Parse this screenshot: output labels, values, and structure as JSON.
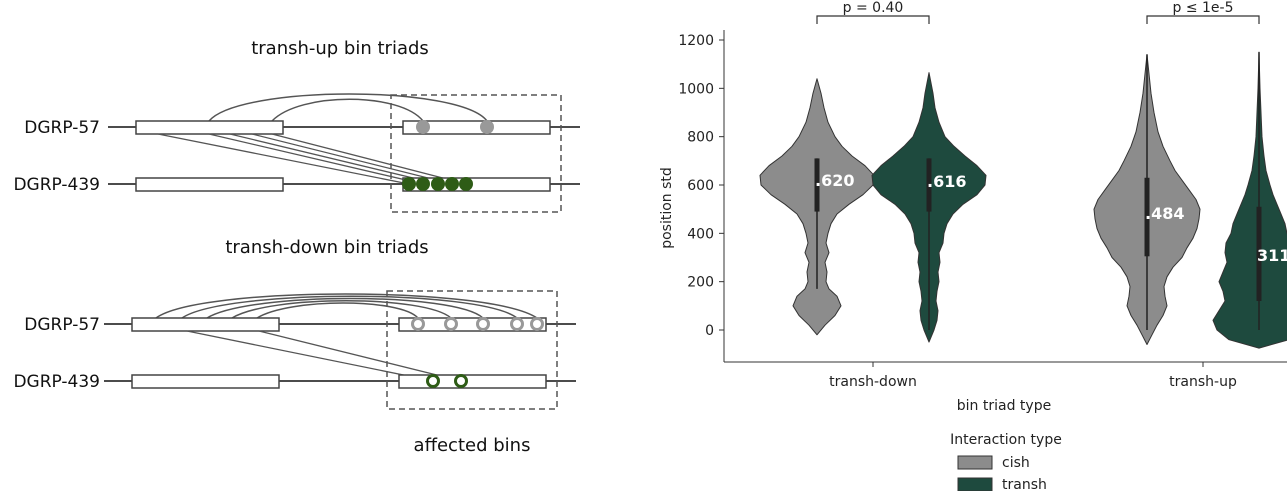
{
  "diagram": {
    "top_title": "transh-up bin triads",
    "mid_title": "transh-down bin triads",
    "bottom_label": "affected bins",
    "genome_a": "DGRP-57",
    "genome_b": "DGRP-439",
    "colors": {
      "cish": "#8c8c8c",
      "transh": "#2e5c16",
      "line": "#555555"
    }
  },
  "chart_data": {
    "type": "violin",
    "xlabel": "bin triad type",
    "ylabel": "position std",
    "ylim": [
      -140,
      1270
    ],
    "yticks": [
      0,
      200,
      400,
      600,
      800,
      1000,
      1200
    ],
    "categories": [
      "transh-down",
      "transh-up"
    ],
    "legend": {
      "title": "Interaction type",
      "position": "bottom"
    },
    "series": [
      {
        "name": "cish",
        "color": "#8c8c8c",
        "median_labels": [
          ".620",
          ".484"
        ],
        "medians": [
          620,
          484
        ]
      },
      {
        "name": "transh",
        "color": "#1e4a3e",
        "median_labels": [
          ".616",
          "311"
        ],
        "medians": [
          616,
          311
        ]
      }
    ],
    "violins": [
      {
        "category": "transh-down",
        "series": "cish",
        "min": -20,
        "max": 1040,
        "q1": 490,
        "median": 620,
        "q3": 710,
        "whisker_low": 170,
        "whisker_high": 710
      },
      {
        "category": "transh-down",
        "series": "transh",
        "min": -50,
        "max": 1065,
        "q1": 490,
        "median": 616,
        "q3": 710,
        "whisker_low": 0,
        "whisker_high": 710
      },
      {
        "category": "transh-up",
        "series": "cish",
        "min": -60,
        "max": 1140,
        "q1": 305,
        "median": 484,
        "q3": 630,
        "whisker_low": 0,
        "whisker_high": 1140
      },
      {
        "category": "transh-up",
        "series": "transh",
        "min": -75,
        "max": 1150,
        "q1": 120,
        "median": 311,
        "q3": 510,
        "whisker_low": 0,
        "whisker_high": 1150
      }
    ],
    "annotations": [
      {
        "category": "transh-down",
        "text": "p = 0.40"
      },
      {
        "category": "transh-up",
        "text": "p ≤ 1e-5"
      }
    ]
  }
}
